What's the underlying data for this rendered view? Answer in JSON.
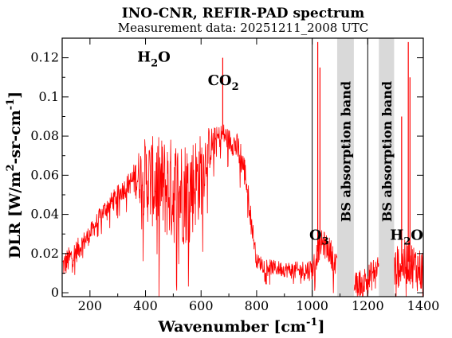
{
  "chart_data": {
    "type": "line",
    "title": "INO-CNR, REFIR-PAD spectrum",
    "subtitle": "Measurement data: 20251211_2008 UTC",
    "xlabel": {
      "main": "Wavenumber [cm",
      "sup": "-1",
      "tail": "]"
    },
    "ylabel": {
      "p1": "DLR [W/m",
      "sup1": "2",
      "p2": "-sr-cm",
      "sup2": "-1",
      "p3": "]"
    },
    "xlim": [
      100,
      1400
    ],
    "ylim": [
      -0.002,
      0.13
    ],
    "xticks": [
      200,
      400,
      600,
      800,
      1000,
      1200,
      1400
    ],
    "yticks": [
      0,
      0.02,
      0.04,
      0.06,
      0.08,
      0.1,
      0.12
    ],
    "ytick_labels": [
      "0",
      "0.02",
      "0.04",
      "0.06",
      "0.08",
      "0.1",
      "0.12"
    ],
    "grid": {
      "vertical_lines_at": [
        1000,
        1200
      ]
    },
    "series_color": "#ff0000",
    "band_color": "#d9d9d9",
    "bands": [
      {
        "x_range": [
          1090,
          1150
        ],
        "label": "BS absorption band"
      },
      {
        "x_range": [
          1240,
          1295
        ],
        "label": "BS absorption band"
      }
    ],
    "annotations": [
      {
        "main": "H",
        "sub": "2",
        "tail": "O",
        "x": 430,
        "y": 0.118
      },
      {
        "main": "CO",
        "sub": "2",
        "tail": "",
        "x": 680,
        "y": 0.106
      },
      {
        "main": "O",
        "sub": "3",
        "tail": "",
        "x": 1025,
        "y": 0.027
      },
      {
        "main": "H",
        "sub": "2",
        "tail": "O",
        "x": 1340,
        "y": 0.027
      }
    ],
    "series": [
      {
        "x": [
          105,
          150,
          200,
          250,
          300,
          350,
          380,
          400,
          450,
          500,
          550,
          600,
          620,
          640,
          660,
          680,
          700,
          720,
          740,
          760,
          780,
          800,
          850,
          900,
          950,
          1000,
          1010,
          1020,
          1030,
          1040,
          1060,
          1080,
          1090,
          1150,
          1170,
          1190,
          1210,
          1230,
          1240,
          1295,
          1310,
          1330,
          1350,
          1370,
          1400
        ],
        "y": [
          0.014,
          0.021,
          0.03,
          0.042,
          0.05,
          0.057,
          0.06,
          0.058,
          0.055,
          0.052,
          0.052,
          0.06,
          0.071,
          0.076,
          0.079,
          0.081,
          0.078,
          0.076,
          0.071,
          0.06,
          0.038,
          0.016,
          0.013,
          0.012,
          0.011,
          0.012,
          0.016,
          0.021,
          0.025,
          0.025,
          0.022,
          0.017,
          0.01,
          0.004,
          0.005,
          0.006,
          0.008,
          0.012,
          0.014,
          0.012,
          0.014,
          0.015,
          0.016,
          0.013,
          0.011
        ],
        "noise_amp": [
          0.007,
          0.006,
          0.005,
          0.005,
          0.005,
          0.006,
          0.015,
          0.022,
          0.025,
          0.028,
          0.028,
          0.022,
          0.014,
          0.009,
          0.006,
          0.006,
          0.006,
          0.007,
          0.009,
          0.008,
          0.006,
          0.004,
          0.004,
          0.004,
          0.005,
          0.006,
          0.007,
          0.007,
          0.007,
          0.007,
          0.007,
          0.008,
          0.008,
          0.006,
          0.007,
          0.008,
          0.008,
          0.008,
          0.008,
          0.01,
          0.011,
          0.012,
          0.012,
          0.012,
          0.012
        ],
        "spikes": [
          {
            "x": 678,
            "y": 0.12
          },
          {
            "x": 1020,
            "y": 0.128
          },
          {
            "x": 1028,
            "y": 0.115
          },
          {
            "x": 1346,
            "y": 0.128
          },
          {
            "x": 1352,
            "y": 0.11
          },
          {
            "x": 1322,
            "y": 0.09
          }
        ]
      }
    ]
  }
}
